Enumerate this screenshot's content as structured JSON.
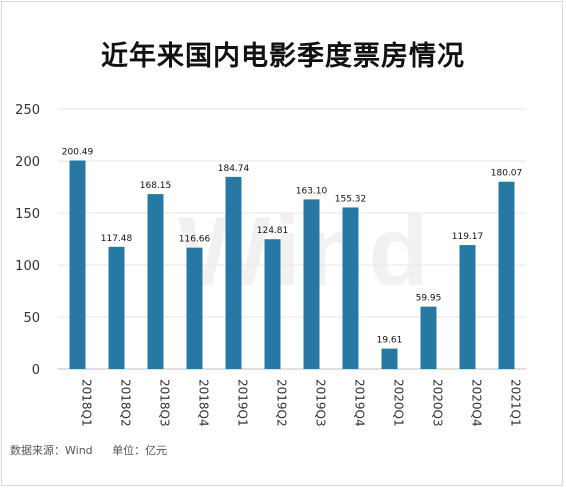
{
  "chart_data": {
    "type": "bar",
    "title": "近年来国内电影季度票房情况",
    "categories": [
      "2018Q1",
      "2018Q2",
      "2018Q3",
      "2018Q4",
      "2019Q1",
      "2019Q2",
      "2019Q3",
      "2019Q4",
      "2020Q1",
      "2020Q3",
      "2020Q4",
      "2021Q1"
    ],
    "values": [
      200.49,
      117.48,
      168.15,
      116.66,
      184.74,
      124.81,
      163.1,
      155.32,
      19.61,
      59.95,
      119.17,
      180.07
    ],
    "data_labels": [
      "200.49",
      "117.48",
      "168.15",
      "116.66",
      "184.74",
      "124.81",
      "163.10",
      "155.32",
      "19.61",
      "59.95",
      "119.17",
      "180.07"
    ],
    "xlabel": "",
    "ylabel": "",
    "ylim": [
      0,
      250
    ],
    "yticks": [
      "0",
      "50",
      "100",
      "150",
      "200",
      "250"
    ],
    "grid": true,
    "legend": "none",
    "bar_color": "#2878a4"
  },
  "watermark": "Wind",
  "footer": {
    "source": "数据来源：Wind",
    "unit": "单位：亿元"
  }
}
